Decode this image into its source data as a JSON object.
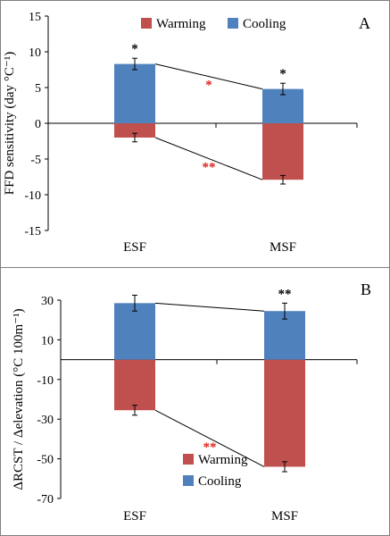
{
  "colors": {
    "warming": "#c0504d",
    "cooling": "#4f81bd",
    "axis": "#000000",
    "border": "#808080",
    "star_black": "#000000",
    "star_red": "#e0201a"
  },
  "chart_data": [
    {
      "type": "bar",
      "stacked_diverging": true,
      "panel_label": "A",
      "categories": [
        "ESF",
        "MSF"
      ],
      "ylabel": "FFD  sensitivity (day °C⁻¹)",
      "ylim": [
        -15,
        15
      ],
      "yticks": [
        -15,
        -10,
        -5,
        0,
        5,
        10,
        15
      ],
      "legend_placement": "top",
      "series": [
        {
          "name": "Warming",
          "values": [
            -2.0,
            -7.9
          ],
          "errors": [
            0.6,
            0.6
          ]
        },
        {
          "name": "Cooling",
          "values": [
            8.3,
            4.8
          ],
          "errors": [
            0.8,
            0.8
          ]
        }
      ],
      "bar_annotations": [
        {
          "category": "ESF",
          "series": "Cooling",
          "text": "*"
        },
        {
          "category": "MSF",
          "series": "Cooling",
          "text": "*"
        }
      ],
      "connector_annotations": [
        {
          "series": "Cooling",
          "text": "*"
        },
        {
          "series": "Warming",
          "text": "**"
        }
      ]
    },
    {
      "type": "bar",
      "stacked_diverging": true,
      "panel_label": "B",
      "categories": [
        "ESF",
        "MSF"
      ],
      "ylabel": "ΔRCST / Δelevation (°C 100m⁻¹)",
      "ylim": [
        -70,
        30
      ],
      "yticks": [
        -70,
        -50,
        -30,
        -10,
        10,
        30
      ],
      "legend_placement": "bottom-right",
      "series": [
        {
          "name": "Warming",
          "values": [
            -25.5,
            -54.0
          ],
          "errors": [
            2.5,
            2.5
          ]
        },
        {
          "name": "Cooling",
          "values": [
            28.5,
            24.5
          ],
          "errors": [
            4.0,
            4.0
          ]
        }
      ],
      "bar_annotations": [
        {
          "category": "MSF",
          "series": "Cooling",
          "text": "**"
        }
      ],
      "connector_annotations": [
        {
          "series": "Warming",
          "text": "**"
        }
      ]
    }
  ]
}
